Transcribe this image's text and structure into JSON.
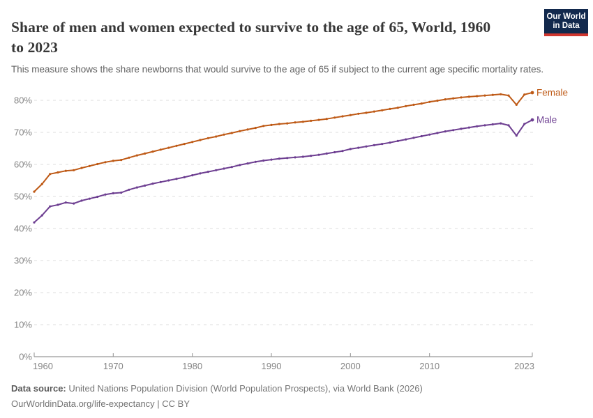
{
  "header": {
    "title": "Share of men and women expected to survive to the age of 65, World, 1960 to 2023",
    "subtitle": "This measure shows the share newborns that would survive to the age of 65 if subject to the current age specific mortality rates."
  },
  "logo": {
    "line1": "Our World",
    "line2": "in Data",
    "bg_color": "#12294d",
    "stripe_color": "#d0362f"
  },
  "chart_data": {
    "type": "line",
    "title": "Share of men and women expected to survive to the age of 65, World, 1960 to 2023",
    "xlabel": "",
    "ylabel": "",
    "x_range": [
      1960,
      2023
    ],
    "ylim": [
      0,
      86
    ],
    "grid": "horizontal dashed",
    "legend_position": "end-of-line labels",
    "xticks": [
      1960,
      1970,
      1980,
      1990,
      2000,
      2010,
      2023
    ],
    "xtick_labels": [
      "1960",
      "1970",
      "1980",
      "1990",
      "2000",
      "2010",
      "2023"
    ],
    "yticks": [
      0,
      10,
      20,
      30,
      40,
      50,
      60,
      70,
      80
    ],
    "ytick_labels": [
      "0%",
      "10%",
      "20%",
      "30%",
      "40%",
      "50%",
      "60%",
      "70%",
      "80%"
    ],
    "x": [
      1960,
      1961,
      1962,
      1963,
      1964,
      1965,
      1966,
      1967,
      1968,
      1969,
      1970,
      1971,
      1972,
      1973,
      1974,
      1975,
      1976,
      1977,
      1978,
      1979,
      1980,
      1981,
      1982,
      1983,
      1984,
      1985,
      1986,
      1987,
      1988,
      1989,
      1990,
      1991,
      1992,
      1993,
      1994,
      1995,
      1996,
      1997,
      1998,
      1999,
      2000,
      2001,
      2002,
      2003,
      2004,
      2005,
      2006,
      2007,
      2008,
      2009,
      2010,
      2011,
      2012,
      2013,
      2014,
      2015,
      2016,
      2017,
      2018,
      2019,
      2020,
      2021,
      2022,
      2023
    ],
    "series": [
      {
        "name": "Female",
        "color": "#be5915",
        "values": [
          51.5,
          53.9,
          57.0,
          57.5,
          58.0,
          58.2,
          58.9,
          59.5,
          60.1,
          60.7,
          61.1,
          61.4,
          62.1,
          62.8,
          63.4,
          64.0,
          64.6,
          65.2,
          65.8,
          66.4,
          67.0,
          67.6,
          68.2,
          68.7,
          69.3,
          69.8,
          70.4,
          70.9,
          71.4,
          72.0,
          72.3,
          72.6,
          72.8,
          73.1,
          73.3,
          73.6,
          73.9,
          74.2,
          74.6,
          75.0,
          75.4,
          75.8,
          76.1,
          76.5,
          76.9,
          77.3,
          77.7,
          78.2,
          78.6,
          79.0,
          79.5,
          79.9,
          80.3,
          80.6,
          80.9,
          81.1,
          81.3,
          81.5,
          81.7,
          81.9,
          81.5,
          78.6,
          81.8,
          82.4
        ]
      },
      {
        "name": "Male",
        "color": "#6d3e91",
        "values": [
          41.9,
          44.1,
          46.9,
          47.4,
          48.1,
          47.8,
          48.7,
          49.3,
          49.9,
          50.6,
          51.0,
          51.2,
          52.1,
          52.8,
          53.4,
          54.0,
          54.5,
          55.0,
          55.5,
          56.0,
          56.6,
          57.2,
          57.7,
          58.2,
          58.7,
          59.2,
          59.8,
          60.3,
          60.8,
          61.2,
          61.5,
          61.8,
          62.0,
          62.2,
          62.4,
          62.7,
          63.0,
          63.4,
          63.8,
          64.2,
          64.8,
          65.2,
          65.6,
          66.0,
          66.4,
          66.8,
          67.3,
          67.8,
          68.3,
          68.8,
          69.3,
          69.8,
          70.3,
          70.7,
          71.1,
          71.5,
          71.9,
          72.2,
          72.5,
          72.8,
          72.2,
          69.0,
          72.6,
          73.9
        ]
      }
    ],
    "style": {
      "grid_color": "#dcdcdc",
      "axis_color": "#999999",
      "tick_label_color": "#858585"
    }
  },
  "footer": {
    "source_label": "Data source:",
    "source_text": " United Nations Population Division (World Population Prospects), via World Bank (2026)",
    "note_text": "OurWorldinData.org/life-expectancy | CC BY"
  }
}
